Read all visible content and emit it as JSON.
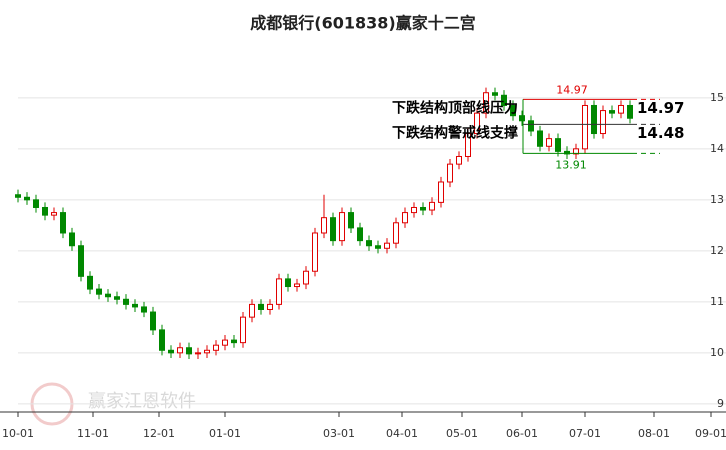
{
  "chart_data": {
    "type": "candlestick",
    "title": "成都银行(601838)赢家十二宫",
    "watermark": "赢家江恩软件",
    "xlim": [
      0,
      236
    ],
    "xticks": [
      {
        "value": 0,
        "label": "10-01"
      },
      {
        "value": 25,
        "label": "11-01"
      },
      {
        "value": 47,
        "label": "12-01"
      },
      {
        "value": 69,
        "label": "01-01"
      },
      {
        "value": 107,
        "label": "03-01"
      },
      {
        "value": 128,
        "label": "04-01"
      },
      {
        "value": 148,
        "label": "05-01"
      },
      {
        "value": 168,
        "label": "06-01"
      },
      {
        "value": 189,
        "label": "07-01"
      },
      {
        "value": 212,
        "label": "08-01"
      },
      {
        "value": 231,
        "label": "09-01"
      }
    ],
    "ylim": [
      8.84,
      16.33
    ],
    "yticks": [
      9,
      10,
      11,
      12,
      13,
      14,
      15
    ],
    "grid": true,
    "up_color": "#e00000",
    "down_color": "#008800",
    "series": [
      {
        "x": [
          0,
          3,
          6,
          9,
          12,
          15,
          18,
          21,
          24,
          27,
          30,
          33,
          36,
          39,
          42,
          45,
          48,
          51,
          54,
          57,
          60,
          63,
          66,
          69,
          72,
          75,
          78,
          81,
          84,
          87,
          90,
          93,
          96,
          99,
          102,
          105,
          108,
          111,
          114,
          117,
          120,
          123,
          126,
          129,
          132,
          135,
          138,
          141,
          144,
          147,
          150,
          153,
          156,
          159,
          162,
          165,
          168,
          171,
          174,
          177,
          180,
          183,
          186,
          189,
          192,
          195,
          198,
          201,
          204
        ],
        "open": [
          13.1,
          13.05,
          13.0,
          12.85,
          12.7,
          12.75,
          12.35,
          12.1,
          11.5,
          11.25,
          11.15,
          11.1,
          11.05,
          10.95,
          10.9,
          10.8,
          10.45,
          10.05,
          10.0,
          10.1,
          9.98,
          10.0,
          10.05,
          10.15,
          10.25,
          10.2,
          10.7,
          10.95,
          10.85,
          10.95,
          11.45,
          11.3,
          11.35,
          11.6,
          12.35,
          12.65,
          12.2,
          12.75,
          12.45,
          12.2,
          12.1,
          12.05,
          12.15,
          12.55,
          12.75,
          12.85,
          12.8,
          12.95,
          13.35,
          13.7,
          13.85,
          14.3,
          14.7,
          15.1,
          15.05,
          14.85,
          14.65,
          14.55,
          14.35,
          14.05,
          14.2,
          13.95,
          13.9,
          14.0,
          14.85,
          14.3,
          14.75,
          14.7,
          14.85
        ],
        "high": [
          13.2,
          13.15,
          13.1,
          12.95,
          12.85,
          12.85,
          12.45,
          12.2,
          11.6,
          11.35,
          11.25,
          11.2,
          11.15,
          11.05,
          11.0,
          10.9,
          10.55,
          10.15,
          10.2,
          10.2,
          10.1,
          10.15,
          10.25,
          10.35,
          10.35,
          10.8,
          11.05,
          11.05,
          11.05,
          11.55,
          11.55,
          11.45,
          11.7,
          12.45,
          13.1,
          12.75,
          12.85,
          12.85,
          12.55,
          12.3,
          12.2,
          12.25,
          12.65,
          12.85,
          12.95,
          12.95,
          13.05,
          13.45,
          13.8,
          13.95,
          14.4,
          14.8,
          15.2,
          15.2,
          15.15,
          14.95,
          14.75,
          14.65,
          14.45,
          14.3,
          14.3,
          14.05,
          14.1,
          14.95,
          14.95,
          14.85,
          14.85,
          14.95,
          14.95
        ],
        "low": [
          12.95,
          12.9,
          12.75,
          12.6,
          12.6,
          12.25,
          12.0,
          11.4,
          11.15,
          11.05,
          11.0,
          10.95,
          10.85,
          10.8,
          10.7,
          10.35,
          9.95,
          9.9,
          9.9,
          9.88,
          9.88,
          9.9,
          9.95,
          10.05,
          10.1,
          10.1,
          10.6,
          10.75,
          10.75,
          10.85,
          11.2,
          11.2,
          11.25,
          11.5,
          12.25,
          12.1,
          12.1,
          12.35,
          12.1,
          12.0,
          11.95,
          11.95,
          12.05,
          12.45,
          12.65,
          12.7,
          12.7,
          12.85,
          13.25,
          13.6,
          13.75,
          14.2,
          14.6,
          14.95,
          14.75,
          14.55,
          14.45,
          14.25,
          13.95,
          13.95,
          13.85,
          13.8,
          13.8,
          13.9,
          14.2,
          14.2,
          14.6,
          14.6,
          14.5
        ],
        "close": [
          13.05,
          13.0,
          12.85,
          12.7,
          12.75,
          12.35,
          12.1,
          11.5,
          11.25,
          11.15,
          11.1,
          11.05,
          10.95,
          10.9,
          10.8,
          10.45,
          10.05,
          10.0,
          10.1,
          9.98,
          10.0,
          10.05,
          10.15,
          10.25,
          10.2,
          10.7,
          10.95,
          10.85,
          10.95,
          11.45,
          11.3,
          11.35,
          11.6,
          12.35,
          12.65,
          12.2,
          12.75,
          12.45,
          12.2,
          12.1,
          12.05,
          12.15,
          12.55,
          12.75,
          12.85,
          12.8,
          12.95,
          13.35,
          13.7,
          13.85,
          14.3,
          14.7,
          15.1,
          15.05,
          14.85,
          14.65,
          14.55,
          14.35,
          14.05,
          14.2,
          13.95,
          13.9,
          14.0,
          14.85,
          14.3,
          14.75,
          14.7,
          14.85,
          14.6
        ]
      }
    ],
    "levels": [
      {
        "label": "下跌结构顶部线压力",
        "value": 14.97,
        "color": "#e00000"
      },
      {
        "label": "下跌结构警戒线支撑",
        "value": 14.48,
        "color": "#333333"
      },
      {
        "value": 13.91,
        "color": "#008800"
      }
    ]
  }
}
